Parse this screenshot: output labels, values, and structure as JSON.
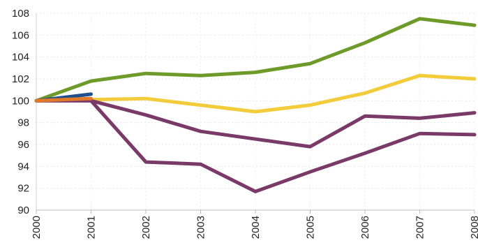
{
  "chart_data": {
    "type": "line",
    "title": "",
    "xlabel": "",
    "ylabel": "",
    "categories": [
      "2000",
      "2001",
      "2002",
      "2003",
      "2004",
      "2005",
      "2006",
      "2007",
      "2008"
    ],
    "ylim": [
      90,
      108
    ],
    "yticks": [
      90,
      92,
      94,
      96,
      98,
      100,
      102,
      104,
      106,
      108
    ],
    "grid": true,
    "legend": "none",
    "series": [
      {
        "color": "#6e9a2a",
        "x": [
          "2000",
          "2001",
          "2002",
          "2003",
          "2004",
          "2005",
          "2006",
          "2007",
          "2008"
        ],
        "values": [
          100.0,
          101.8,
          102.5,
          102.3,
          102.6,
          103.4,
          105.3,
          107.5,
          106.9
        ]
      },
      {
        "color": "#f2cc3a",
        "x": [
          "2000",
          "2001",
          "2002",
          "2003",
          "2004",
          "2005",
          "2006",
          "2007",
          "2008"
        ],
        "values": [
          100.0,
          100.1,
          100.2,
          99.6,
          99.0,
          99.6,
          100.7,
          102.3,
          102.0
        ]
      },
      {
        "color": "#7a3a68",
        "x": [
          "2000",
          "2001",
          "2002",
          "2003",
          "2004",
          "2005",
          "2006",
          "2007",
          "2008"
        ],
        "values": [
          100.0,
          100.0,
          98.7,
          97.2,
          96.5,
          95.8,
          98.6,
          98.4,
          98.9
        ]
      },
      {
        "color": "#7a3a68",
        "x": [
          "2000",
          "2001",
          "2002",
          "2003",
          "2004",
          "2005",
          "2006",
          "2007",
          "2008"
        ],
        "values": [
          100.0,
          100.0,
          94.4,
          94.2,
          91.7,
          93.5,
          95.2,
          97.0,
          96.9
        ]
      },
      {
        "color": "#1f4e8c",
        "x": [
          "2000",
          "2001"
        ],
        "values": [
          100.0,
          100.6
        ]
      },
      {
        "color": "#e07a2a",
        "x": [
          "2000",
          "2001"
        ],
        "values": [
          100.0,
          100.2
        ]
      }
    ]
  }
}
